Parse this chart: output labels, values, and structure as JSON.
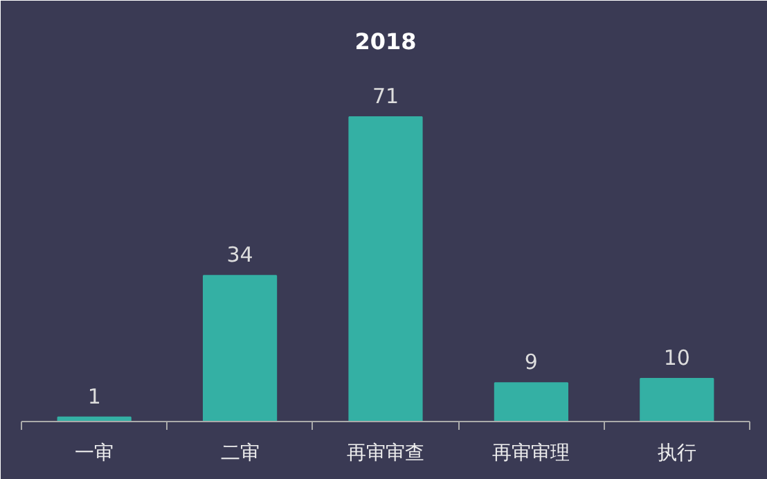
{
  "chart_data": {
    "type": "bar",
    "title": "2018",
    "categories": [
      "一审",
      "二审",
      "再审审查",
      "再审审理",
      "执行"
    ],
    "values": [
      1,
      34,
      71,
      9,
      10
    ],
    "color": "#34b0a4",
    "data_labels": true
  }
}
